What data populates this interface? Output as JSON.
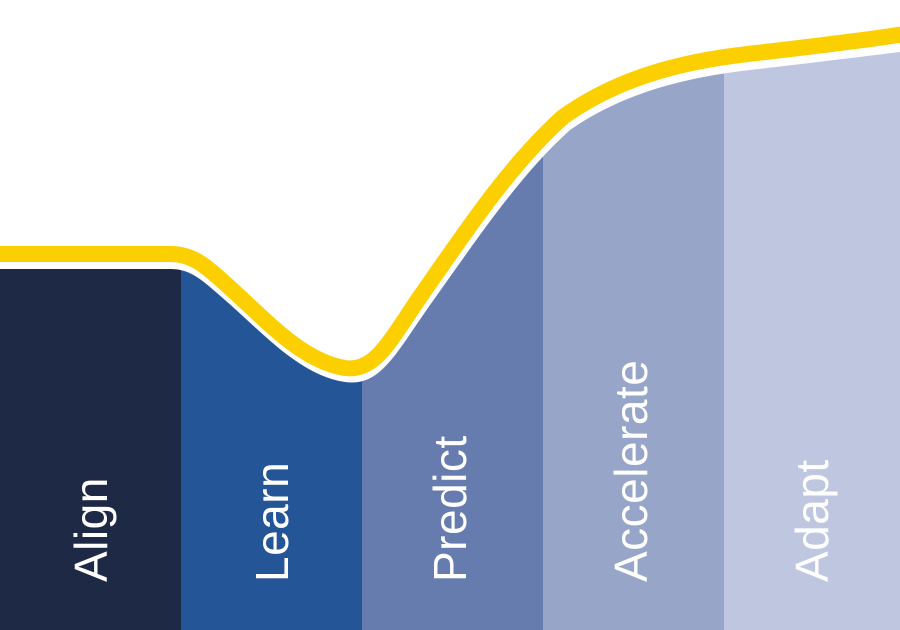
{
  "diagram": {
    "stages": [
      {
        "label": "Align",
        "color": "#1e2a45"
      },
      {
        "label": "Learn",
        "color": "#245596"
      },
      {
        "label": "Predict",
        "color": "#667bae"
      },
      {
        "label": "Accelerate",
        "color": "#96a5c8"
      },
      {
        "label": "Adapt",
        "color": "#bec6e0"
      }
    ],
    "curve_color": "#fccf00",
    "background": "#ffffff"
  }
}
